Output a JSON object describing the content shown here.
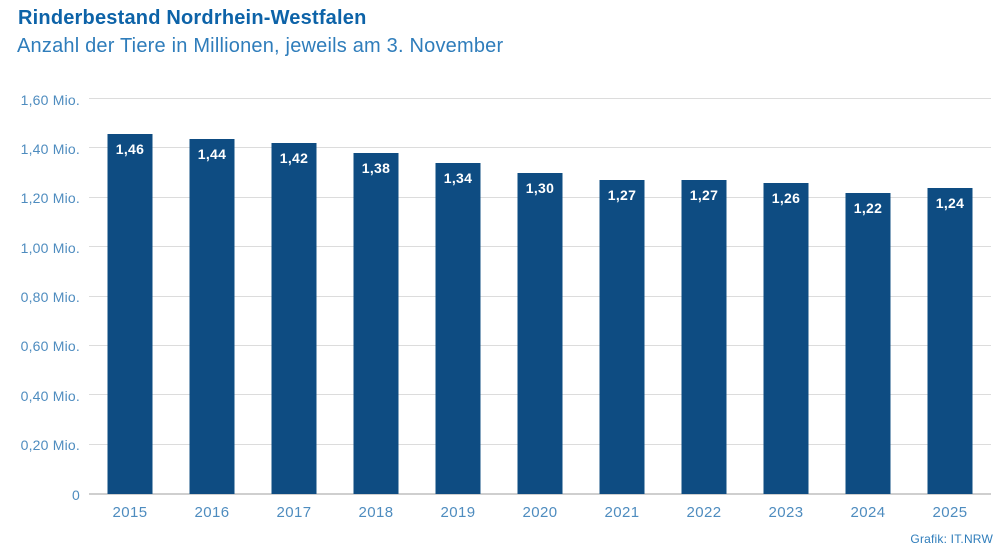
{
  "chart_data": {
    "type": "bar",
    "title": "Rinderbestand Nordrhein-Westfalen",
    "subtitle": "Anzahl der Tiere in Millionen, jeweils am 3. November",
    "categories": [
      "2015",
      "2016",
      "2017",
      "2018",
      "2019",
      "2020",
      "2021",
      "2022",
      "2023",
      "2024",
      "2025"
    ],
    "values": [
      1.46,
      1.44,
      1.42,
      1.38,
      1.34,
      1.3,
      1.27,
      1.27,
      1.26,
      1.22,
      1.24
    ],
    "value_labels": [
      "1,46",
      "1,44",
      "1,42",
      "1,38",
      "1,34",
      "1,30",
      "1,27",
      "1,27",
      "1,26",
      "1,22",
      "1,24"
    ],
    "xlabel": "",
    "ylabel": "",
    "ylim": [
      0,
      1.6
    ],
    "yticks": [
      {
        "value": 1.6,
        "label": "1,60 Mio."
      },
      {
        "value": 1.4,
        "label": "1,40 Mio."
      },
      {
        "value": 1.2,
        "label": "1,20 Mio."
      },
      {
        "value": 1.0,
        "label": "1,00 Mio."
      },
      {
        "value": 0.8,
        "label": "0,80 Mio."
      },
      {
        "value": 0.6,
        "label": "0,60 Mio."
      },
      {
        "value": 0.4,
        "label": "0,40 Mio."
      },
      {
        "value": 0.2,
        "label": "0,20 Mio."
      },
      {
        "value": 0,
        "label": "0"
      }
    ],
    "grid": "horizontal",
    "legend": "none"
  },
  "footer": {
    "credit": "Grafik: IT.NRW"
  },
  "colors": {
    "bar": "#0e4c82",
    "title": "#0d63a8",
    "subtitle": "#2f7dbb",
    "axis_label": "#4e8cbf",
    "gridline": "#dcdcdc",
    "baseline": "#cfcfcf",
    "bar_value_label": "#ffffff",
    "background": "#ffffff"
  }
}
